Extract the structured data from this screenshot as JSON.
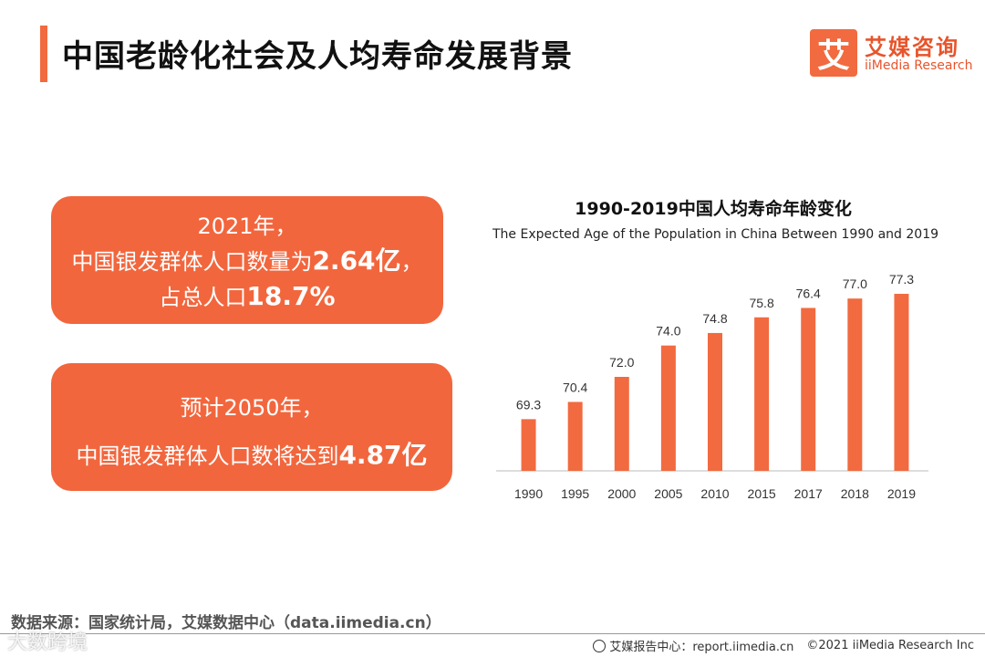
{
  "header": {
    "title": "中国老龄化社会及人均寿命发展背景"
  },
  "logo": {
    "mark": "艾",
    "name_cn": "艾媒咨询",
    "name_en": "iiMedia Research"
  },
  "card1": {
    "line1": "2021年，",
    "line2_prefix": "中国银发群体人口数量为",
    "line2_value": "2.64亿",
    "line2_suffix": "，",
    "line3_prefix": "占总人口",
    "line3_value": "18.7%"
  },
  "card2": {
    "line1": "预计2050年，",
    "line2_prefix": "中国银发群体人口数将达到",
    "line2_value": "4.87亿"
  },
  "chart_data": {
    "type": "bar",
    "title": "1990-2019中国人均寿命年龄变化",
    "subtitle": "The Expected Age of the Population in China Between 1990 and 2019",
    "categories": [
      "1990",
      "1995",
      "2000",
      "2005",
      "2010",
      "2015",
      "2017",
      "2018",
      "2019"
    ],
    "values": [
      69.3,
      70.4,
      72.0,
      74.0,
      74.8,
      75.8,
      76.4,
      77.0,
      77.3
    ],
    "value_labels": [
      "69.3",
      "70.4",
      "72.0",
      "74.0",
      "74.8",
      "75.8",
      "76.4",
      "77.0",
      "77.3"
    ],
    "xlabel": "",
    "ylabel": "",
    "ylim": [
      66,
      78
    ],
    "grid": false,
    "color": "#f26a3f"
  },
  "footer": {
    "source": "数据来源：国家统计局，艾媒数据中心（data.iimedia.cn）",
    "report_center": "艾媒报告中心：report.iimedia.cn",
    "copyright": "©2021 iiMedia Research Inc",
    "watermark": "大数跨境"
  }
}
